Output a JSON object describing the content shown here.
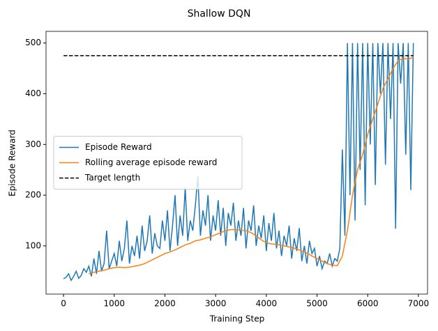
{
  "chart_data": {
    "type": "line",
    "title": "Shallow DQN",
    "x_label": "Training Step",
    "y_label": "Episode Reward",
    "xlim": [
      -345,
      7180
    ],
    "ylim": [
      5,
      523
    ],
    "xticks": [
      0,
      1000,
      2000,
      3000,
      4000,
      5000,
      6000,
      7000
    ],
    "yticks": [
      100,
      200,
      300,
      400,
      500
    ],
    "grid": false,
    "legend": "center left",
    "series": [
      {
        "name": "Episode Reward",
        "color": "#1f77b4",
        "linestyle": "solid",
        "x": [
          0,
          50,
          100,
          150,
          200,
          250,
          300,
          350,
          400,
          450,
          500,
          550,
          600,
          650,
          700,
          750,
          800,
          850,
          900,
          950,
          1000,
          1050,
          1100,
          1150,
          1200,
          1250,
          1300,
          1350,
          1400,
          1450,
          1500,
          1550,
          1600,
          1650,
          1700,
          1750,
          1800,
          1850,
          1900,
          1950,
          2000,
          2050,
          2100,
          2150,
          2200,
          2250,
          2300,
          2350,
          2400,
          2450,
          2500,
          2550,
          2600,
          2650,
          2700,
          2750,
          2800,
          2850,
          2900,
          2950,
          3000,
          3050,
          3100,
          3150,
          3200,
          3250,
          3300,
          3350,
          3400,
          3450,
          3500,
          3550,
          3600,
          3650,
          3700,
          3750,
          3800,
          3850,
          3900,
          3950,
          4000,
          4050,
          4100,
          4150,
          4200,
          4250,
          4300,
          4350,
          4400,
          4450,
          4500,
          4550,
          4600,
          4650,
          4700,
          4750,
          4800,
          4850,
          4900,
          4950,
          5000,
          5050,
          5100,
          5150,
          5200,
          5250,
          5300,
          5350,
          5400,
          5450,
          5500,
          5550,
          5600,
          5650,
          5700,
          5750,
          5800,
          5850,
          5900,
          5950,
          6000,
          6050,
          6100,
          6150,
          6200,
          6250,
          6300,
          6350,
          6400,
          6450,
          6500,
          6550,
          6600,
          6650,
          6700,
          6750,
          6800,
          6850,
          6900
        ],
        "values": [
          35,
          38,
          45,
          32,
          40,
          50,
          36,
          42,
          55,
          48,
          60,
          40,
          75,
          45,
          90,
          50,
          65,
          130,
          55,
          70,
          85,
          60,
          110,
          70,
          95,
          150,
          65,
          100,
          80,
          120,
          75,
          140,
          90,
          110,
          160,
          85,
          125,
          100,
          95,
          150,
          110,
          170,
          90,
          140,
          200,
          100,
          160,
          120,
          215,
          110,
          150,
          130,
          180,
          237,
          120,
          170,
          140,
          200,
          110,
          160,
          130,
          190,
          120,
          175,
          100,
          165,
          140,
          185,
          110,
          150,
          120,
          175,
          95,
          150,
          130,
          180,
          100,
          140,
          115,
          160,
          90,
          145,
          110,
          165,
          95,
          130,
          80,
          120,
          100,
          140,
          75,
          115,
          90,
          135,
          70,
          100,
          65,
          110,
          85,
          95,
          60,
          80,
          55,
          70,
          65,
          85,
          60,
          75,
          70,
          95,
          290,
          120,
          500,
          200,
          500,
          150,
          500,
          250,
          500,
          180,
          500,
          300,
          500,
          220,
          500,
          400,
          500,
          260,
          500,
          350,
          500,
          134,
          500,
          420,
          500,
          280,
          500,
          210,
          500
        ]
      },
      {
        "name": "Rolling average episode reward",
        "color": "#ff7f0e",
        "linestyle": "solid",
        "x": [
          500,
          600,
          700,
          800,
          900,
          1000,
          1100,
          1200,
          1300,
          1400,
          1500,
          1600,
          1700,
          1800,
          1900,
          2000,
          2100,
          2200,
          2300,
          2400,
          2500,
          2600,
          2700,
          2800,
          2900,
          3000,
          3100,
          3200,
          3300,
          3400,
          3500,
          3600,
          3700,
          3800,
          3900,
          4000,
          4100,
          4200,
          4300,
          4400,
          4500,
          4600,
          4700,
          4800,
          4900,
          5000,
          5100,
          5200,
          5300,
          5400,
          5500,
          5600,
          5700,
          5800,
          5900,
          6000,
          6100,
          6200,
          6300,
          6400,
          6500,
          6600,
          6700,
          6800,
          6900
        ],
        "values": [
          45,
          48,
          50,
          52,
          55,
          57,
          58,
          57,
          58,
          60,
          62,
          65,
          70,
          75,
          80,
          85,
          88,
          92,
          97,
          102,
          105,
          110,
          112,
          115,
          118,
          122,
          126,
          130,
          132,
          132,
          131,
          130,
          126,
          120,
          112,
          106,
          104,
          103,
          101,
          99,
          97,
          94,
          90,
          86,
          80,
          75,
          70,
          65,
          62,
          61,
          80,
          130,
          200,
          250,
          280,
          320,
          350,
          380,
          410,
          430,
          450,
          465,
          470,
          468,
          472
        ]
      },
      {
        "name": "Target length",
        "color": "#000000",
        "linestyle": "dashed",
        "x": [
          0,
          6900
        ],
        "values": [
          475,
          475
        ]
      }
    ]
  }
}
